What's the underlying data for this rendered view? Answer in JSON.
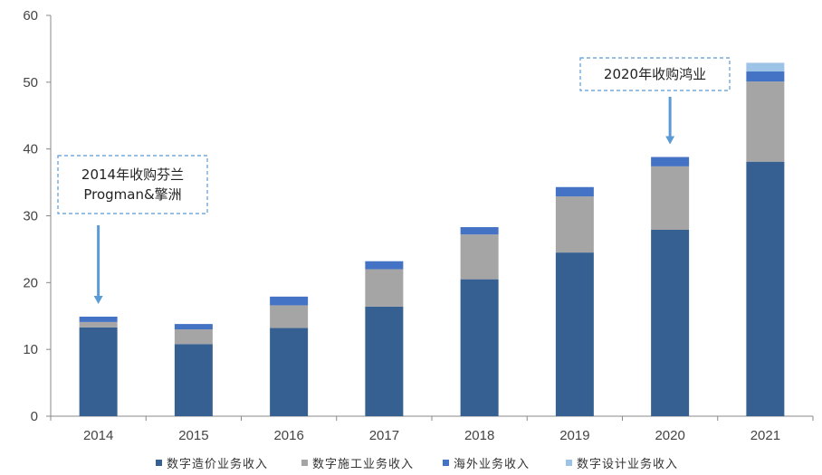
{
  "chart_data": {
    "type": "bar",
    "stacked": true,
    "categories": [
      "2014",
      "2015",
      "2016",
      "2017",
      "2018",
      "2019",
      "2020",
      "2021"
    ],
    "series": [
      {
        "name": "数字造价业务收入",
        "color": "#366092",
        "values": [
          13.3,
          10.8,
          13.2,
          16.4,
          20.5,
          24.5,
          27.9,
          38.1
        ]
      },
      {
        "name": "数字施工业务收入",
        "color": "#A5A5A5",
        "values": [
          0.8,
          2.2,
          3.4,
          5.6,
          6.7,
          8.4,
          9.5,
          12.0
        ]
      },
      {
        "name": "海外业务收入",
        "color": "#4472C4",
        "values": [
          0.8,
          0.8,
          1.3,
          1.2,
          1.1,
          1.4,
          1.4,
          1.5
        ]
      },
      {
        "name": "数字设计业务收入",
        "color": "#9DC3E6",
        "values": [
          0,
          0,
          0,
          0,
          0,
          0,
          0,
          1.3
        ]
      }
    ],
    "ylim": [
      0,
      60
    ],
    "yticks": [
      0,
      10,
      20,
      30,
      40,
      50,
      60
    ],
    "grid": false,
    "legend_position": "bottom",
    "annotations": [
      {
        "category": "2014",
        "lines": [
          "2014年收购芬兰",
          "Progman&擎洲"
        ]
      },
      {
        "category": "2020",
        "lines": [
          "2020年收购鸿业"
        ]
      }
    ]
  }
}
